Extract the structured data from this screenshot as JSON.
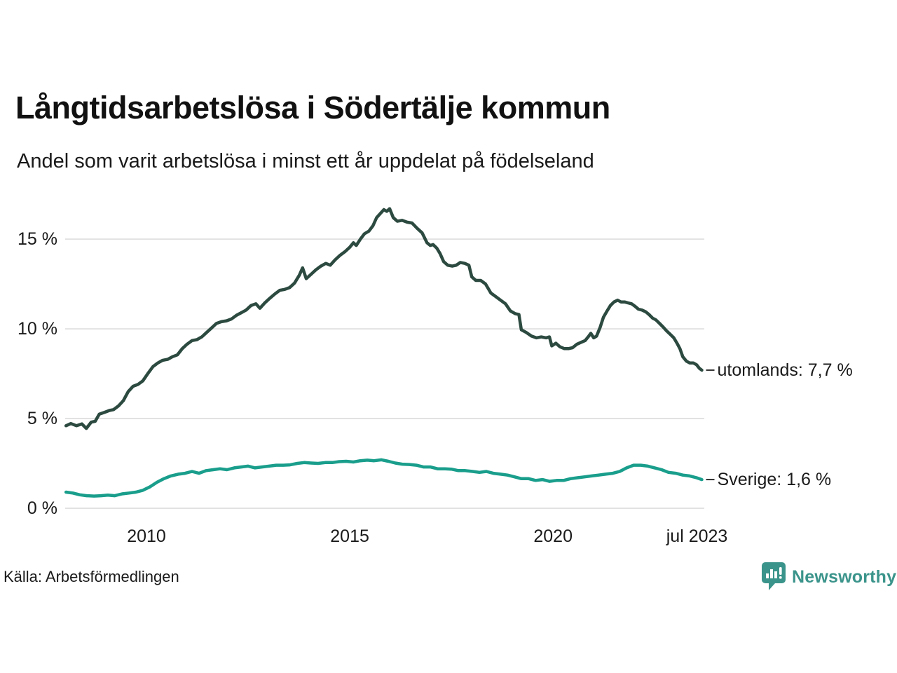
{
  "header": {
    "title": "Långtidsarbetslösa i Södertälje kommun",
    "subtitle": "Andel som varit arbetslösa i minst ett år uppdelat på födelseland"
  },
  "footer": {
    "source": "Källa: Arbetsförmedlingen",
    "brand_name": "Newsworthy",
    "brand_color": "#3b948b"
  },
  "colors": {
    "utomlands_line": "#2c4a40",
    "sverige_line": "#1a9e8c",
    "grid": "#e2e2e2",
    "axis_text": "#1a1a1a",
    "annotation_dash": "#333333"
  },
  "chart_data": {
    "type": "line",
    "title": "Långtidsarbetslösa i Södertälje kommun",
    "subtitle": "Andel som varit arbetslösa i minst ett år uppdelat på födelseland",
    "unit": "%",
    "grid": "horizontal",
    "legend_position": "line-end-labels",
    "xlim": [
      2008.0,
      2023.72
    ],
    "ylim": [
      0,
      17.0
    ],
    "y_ticks": [
      {
        "value": 0,
        "label": "0 %"
      },
      {
        "value": 5,
        "label": "5 %"
      },
      {
        "value": 10,
        "label": "10 %"
      },
      {
        "value": 15,
        "label": "15 %"
      }
    ],
    "x_ticks": [
      {
        "year": 2010.0,
        "label": "2010"
      },
      {
        "year": 2015.0,
        "label": "2015"
      },
      {
        "year": 2020.0,
        "label": "2020"
      },
      {
        "year": 2023.54,
        "label": "jul 2023"
      }
    ],
    "series": [
      {
        "name": "utomlands",
        "end_label": "utomlands: 7,7 %",
        "last_value": 7.7,
        "color": "#2c4a40",
        "points": [
          [
            2008.02,
            4.6
          ],
          [
            2008.14,
            4.72
          ],
          [
            2008.28,
            4.6
          ],
          [
            2008.41,
            4.7
          ],
          [
            2008.52,
            4.45
          ],
          [
            2008.64,
            4.8
          ],
          [
            2008.74,
            4.85
          ],
          [
            2008.84,
            5.25
          ],
          [
            2008.97,
            5.35
          ],
          [
            2009.09,
            5.45
          ],
          [
            2009.19,
            5.5
          ],
          [
            2009.31,
            5.7
          ],
          [
            2009.43,
            6.0
          ],
          [
            2009.55,
            6.5
          ],
          [
            2009.67,
            6.8
          ],
          [
            2009.79,
            6.9
          ],
          [
            2009.91,
            7.1
          ],
          [
            2010.03,
            7.5
          ],
          [
            2010.16,
            7.9
          ],
          [
            2010.28,
            8.1
          ],
          [
            2010.4,
            8.25
          ],
          [
            2010.52,
            8.3
          ],
          [
            2010.64,
            8.45
          ],
          [
            2010.76,
            8.55
          ],
          [
            2010.88,
            8.9
          ],
          [
            2011.0,
            9.15
          ],
          [
            2011.12,
            9.35
          ],
          [
            2011.24,
            9.4
          ],
          [
            2011.36,
            9.55
          ],
          [
            2011.48,
            9.8
          ],
          [
            2011.6,
            10.05
          ],
          [
            2011.72,
            10.3
          ],
          [
            2011.84,
            10.4
          ],
          [
            2011.97,
            10.45
          ],
          [
            2012.09,
            10.55
          ],
          [
            2012.21,
            10.75
          ],
          [
            2012.33,
            10.9
          ],
          [
            2012.45,
            11.05
          ],
          [
            2012.57,
            11.3
          ],
          [
            2012.69,
            11.4
          ],
          [
            2012.79,
            11.15
          ],
          [
            2012.91,
            11.45
          ],
          [
            2013.03,
            11.7
          ],
          [
            2013.16,
            11.95
          ],
          [
            2013.28,
            12.15
          ],
          [
            2013.4,
            12.2
          ],
          [
            2013.52,
            12.3
          ],
          [
            2013.64,
            12.55
          ],
          [
            2013.76,
            13.0
          ],
          [
            2013.84,
            13.4
          ],
          [
            2013.93,
            12.8
          ],
          [
            2014.05,
            13.05
          ],
          [
            2014.17,
            13.3
          ],
          [
            2014.29,
            13.5
          ],
          [
            2014.41,
            13.65
          ],
          [
            2014.52,
            13.55
          ],
          [
            2014.64,
            13.85
          ],
          [
            2014.76,
            14.1
          ],
          [
            2014.88,
            14.3
          ],
          [
            2015.0,
            14.55
          ],
          [
            2015.09,
            14.8
          ],
          [
            2015.16,
            14.65
          ],
          [
            2015.26,
            15.0
          ],
          [
            2015.36,
            15.3
          ],
          [
            2015.47,
            15.45
          ],
          [
            2015.57,
            15.75
          ],
          [
            2015.66,
            16.2
          ],
          [
            2015.74,
            16.4
          ],
          [
            2015.84,
            16.65
          ],
          [
            2015.91,
            16.55
          ],
          [
            2015.98,
            16.7
          ],
          [
            2016.07,
            16.2
          ],
          [
            2016.17,
            16.0
          ],
          [
            2016.29,
            16.05
          ],
          [
            2016.41,
            15.95
          ],
          [
            2016.53,
            15.9
          ],
          [
            2016.66,
            15.6
          ],
          [
            2016.78,
            15.35
          ],
          [
            2016.9,
            14.8
          ],
          [
            2016.98,
            14.65
          ],
          [
            2017.05,
            14.7
          ],
          [
            2017.14,
            14.5
          ],
          [
            2017.22,
            14.2
          ],
          [
            2017.31,
            13.75
          ],
          [
            2017.41,
            13.55
          ],
          [
            2017.52,
            13.5
          ],
          [
            2017.62,
            13.55
          ],
          [
            2017.72,
            13.7
          ],
          [
            2017.83,
            13.65
          ],
          [
            2017.93,
            13.55
          ],
          [
            2018.0,
            12.9
          ],
          [
            2018.1,
            12.7
          ],
          [
            2018.22,
            12.7
          ],
          [
            2018.34,
            12.5
          ],
          [
            2018.47,
            12.0
          ],
          [
            2018.59,
            11.8
          ],
          [
            2018.71,
            11.6
          ],
          [
            2018.83,
            11.4
          ],
          [
            2018.95,
            11.0
          ],
          [
            2019.07,
            10.85
          ],
          [
            2019.16,
            10.8
          ],
          [
            2019.22,
            9.95
          ],
          [
            2019.34,
            9.8
          ],
          [
            2019.47,
            9.6
          ],
          [
            2019.59,
            9.5
          ],
          [
            2019.71,
            9.55
          ],
          [
            2019.83,
            9.5
          ],
          [
            2019.91,
            9.55
          ],
          [
            2019.97,
            9.05
          ],
          [
            2020.07,
            9.2
          ],
          [
            2020.17,
            9.0
          ],
          [
            2020.28,
            8.9
          ],
          [
            2020.38,
            8.9
          ],
          [
            2020.48,
            8.95
          ],
          [
            2020.59,
            9.15
          ],
          [
            2020.69,
            9.25
          ],
          [
            2020.79,
            9.35
          ],
          [
            2020.88,
            9.6
          ],
          [
            2020.93,
            9.75
          ],
          [
            2021.0,
            9.5
          ],
          [
            2021.07,
            9.6
          ],
          [
            2021.16,
            10.1
          ],
          [
            2021.24,
            10.65
          ],
          [
            2021.33,
            11.0
          ],
          [
            2021.41,
            11.3
          ],
          [
            2021.5,
            11.5
          ],
          [
            2021.59,
            11.6
          ],
          [
            2021.67,
            11.5
          ],
          [
            2021.76,
            11.5
          ],
          [
            2021.84,
            11.45
          ],
          [
            2021.93,
            11.4
          ],
          [
            2022.02,
            11.25
          ],
          [
            2022.1,
            11.1
          ],
          [
            2022.19,
            11.05
          ],
          [
            2022.28,
            10.95
          ],
          [
            2022.36,
            10.8
          ],
          [
            2022.45,
            10.6
          ],
          [
            2022.53,
            10.5
          ],
          [
            2022.62,
            10.3
          ],
          [
            2022.71,
            10.1
          ],
          [
            2022.79,
            9.9
          ],
          [
            2022.88,
            9.7
          ],
          [
            2022.97,
            9.5
          ],
          [
            2023.05,
            9.2
          ],
          [
            2023.12,
            8.9
          ],
          [
            2023.19,
            8.45
          ],
          [
            2023.28,
            8.2
          ],
          [
            2023.36,
            8.1
          ],
          [
            2023.45,
            8.1
          ],
          [
            2023.53,
            8.0
          ],
          [
            2023.6,
            7.8
          ],
          [
            2023.66,
            7.7
          ]
        ]
      },
      {
        "name": "Sverige",
        "end_label": "Sverige: 1,6 %",
        "last_value": 1.6,
        "color": "#1a9e8c",
        "points": [
          [
            2008.02,
            0.9
          ],
          [
            2008.19,
            0.85
          ],
          [
            2008.36,
            0.75
          ],
          [
            2008.53,
            0.7
          ],
          [
            2008.71,
            0.68
          ],
          [
            2008.88,
            0.7
          ],
          [
            2009.05,
            0.73
          ],
          [
            2009.22,
            0.7
          ],
          [
            2009.4,
            0.8
          ],
          [
            2009.57,
            0.85
          ],
          [
            2009.74,
            0.9
          ],
          [
            2009.91,
            1.0
          ],
          [
            2010.09,
            1.2
          ],
          [
            2010.26,
            1.45
          ],
          [
            2010.43,
            1.65
          ],
          [
            2010.6,
            1.8
          ],
          [
            2010.78,
            1.9
          ],
          [
            2010.95,
            1.95
          ],
          [
            2011.12,
            2.05
          ],
          [
            2011.29,
            1.95
          ],
          [
            2011.47,
            2.1
          ],
          [
            2011.64,
            2.15
          ],
          [
            2011.81,
            2.2
          ],
          [
            2011.98,
            2.15
          ],
          [
            2012.16,
            2.25
          ],
          [
            2012.33,
            2.3
          ],
          [
            2012.5,
            2.35
          ],
          [
            2012.67,
            2.25
          ],
          [
            2012.84,
            2.3
          ],
          [
            2013.02,
            2.35
          ],
          [
            2013.19,
            2.4
          ],
          [
            2013.36,
            2.4
          ],
          [
            2013.53,
            2.42
          ],
          [
            2013.71,
            2.5
          ],
          [
            2013.88,
            2.55
          ],
          [
            2014.05,
            2.52
          ],
          [
            2014.22,
            2.5
          ],
          [
            2014.4,
            2.55
          ],
          [
            2014.57,
            2.55
          ],
          [
            2014.74,
            2.6
          ],
          [
            2014.91,
            2.62
          ],
          [
            2015.09,
            2.58
          ],
          [
            2015.26,
            2.65
          ],
          [
            2015.43,
            2.68
          ],
          [
            2015.6,
            2.65
          ],
          [
            2015.78,
            2.7
          ],
          [
            2015.95,
            2.62
          ],
          [
            2016.12,
            2.52
          ],
          [
            2016.29,
            2.46
          ],
          [
            2016.47,
            2.44
          ],
          [
            2016.64,
            2.4
          ],
          [
            2016.81,
            2.3
          ],
          [
            2016.98,
            2.3
          ],
          [
            2017.16,
            2.2
          ],
          [
            2017.33,
            2.2
          ],
          [
            2017.5,
            2.18
          ],
          [
            2017.67,
            2.1
          ],
          [
            2017.84,
            2.1
          ],
          [
            2018.02,
            2.05
          ],
          [
            2018.19,
            2.0
          ],
          [
            2018.36,
            2.05
          ],
          [
            2018.53,
            1.95
          ],
          [
            2018.71,
            1.9
          ],
          [
            2018.88,
            1.85
          ],
          [
            2019.05,
            1.75
          ],
          [
            2019.22,
            1.65
          ],
          [
            2019.4,
            1.65
          ],
          [
            2019.57,
            1.55
          ],
          [
            2019.74,
            1.6
          ],
          [
            2019.91,
            1.5
          ],
          [
            2020.09,
            1.55
          ],
          [
            2020.26,
            1.55
          ],
          [
            2020.43,
            1.65
          ],
          [
            2020.6,
            1.7
          ],
          [
            2020.78,
            1.75
          ],
          [
            2020.95,
            1.8
          ],
          [
            2021.12,
            1.85
          ],
          [
            2021.29,
            1.9
          ],
          [
            2021.47,
            1.95
          ],
          [
            2021.64,
            2.05
          ],
          [
            2021.81,
            2.25
          ],
          [
            2021.98,
            2.4
          ],
          [
            2022.16,
            2.4
          ],
          [
            2022.33,
            2.35
          ],
          [
            2022.5,
            2.25
          ],
          [
            2022.67,
            2.15
          ],
          [
            2022.84,
            2.0
          ],
          [
            2023.02,
            1.95
          ],
          [
            2023.19,
            1.85
          ],
          [
            2023.36,
            1.8
          ],
          [
            2023.53,
            1.7
          ],
          [
            2023.66,
            1.6
          ]
        ]
      }
    ]
  }
}
